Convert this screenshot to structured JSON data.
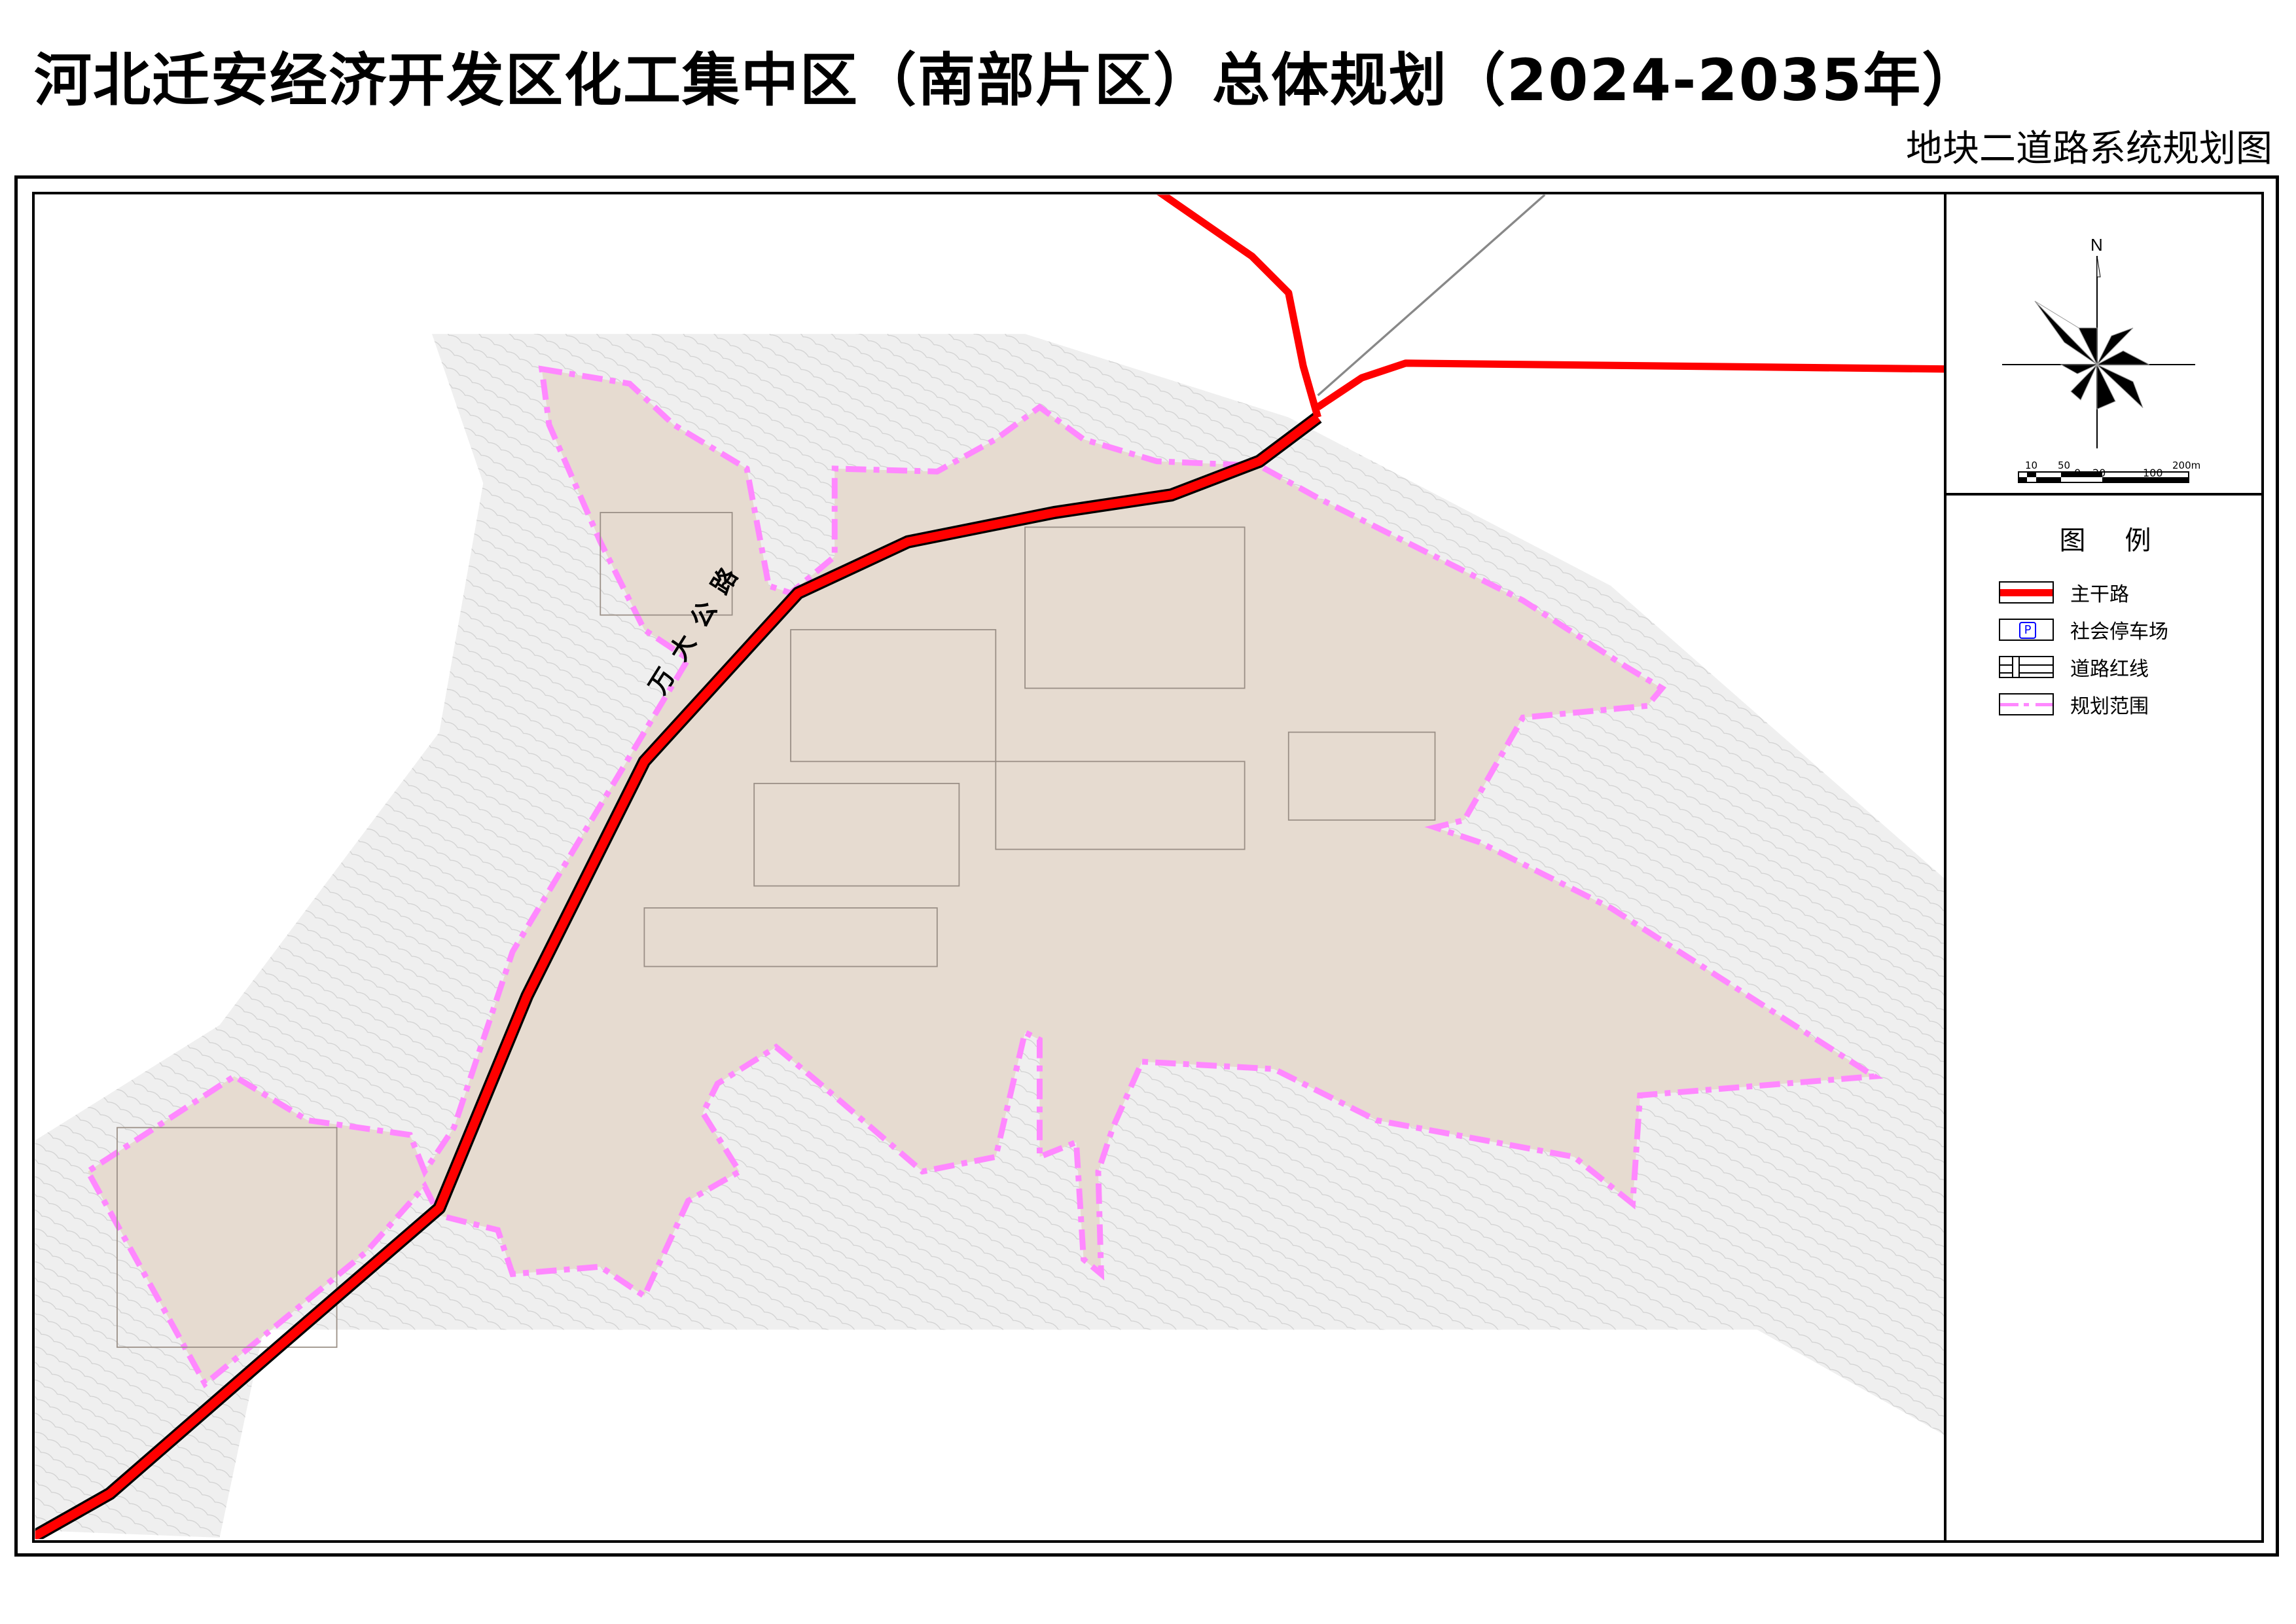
{
  "title": "河北迁安经济开发区化工集中区（南部片区）总体规划（2024-2035年）",
  "subtitle": "地块二道路系统规划图",
  "map": {
    "road_label": "万大公路",
    "colors": {
      "main_road": "#ff0000",
      "planning_area": "#e6dbd0",
      "boundary": "#ff88ff",
      "terrain": "#efefef"
    }
  },
  "compass": {
    "north_label": "N"
  },
  "scale_bar": {
    "top_labels": [
      "10",
      "50",
      "200m"
    ],
    "bottom_labels": [
      "0",
      "20",
      "100"
    ]
  },
  "legend": {
    "title": "图例",
    "items": [
      {
        "label": "主干路",
        "symbol": "red-line"
      },
      {
        "label": "社会停车场",
        "symbol": "parking",
        "symbol_text": "P"
      },
      {
        "label": "道路红线",
        "symbol": "road-red-line"
      },
      {
        "label": "规划范围",
        "symbol": "pink-dash-dot"
      }
    ]
  }
}
